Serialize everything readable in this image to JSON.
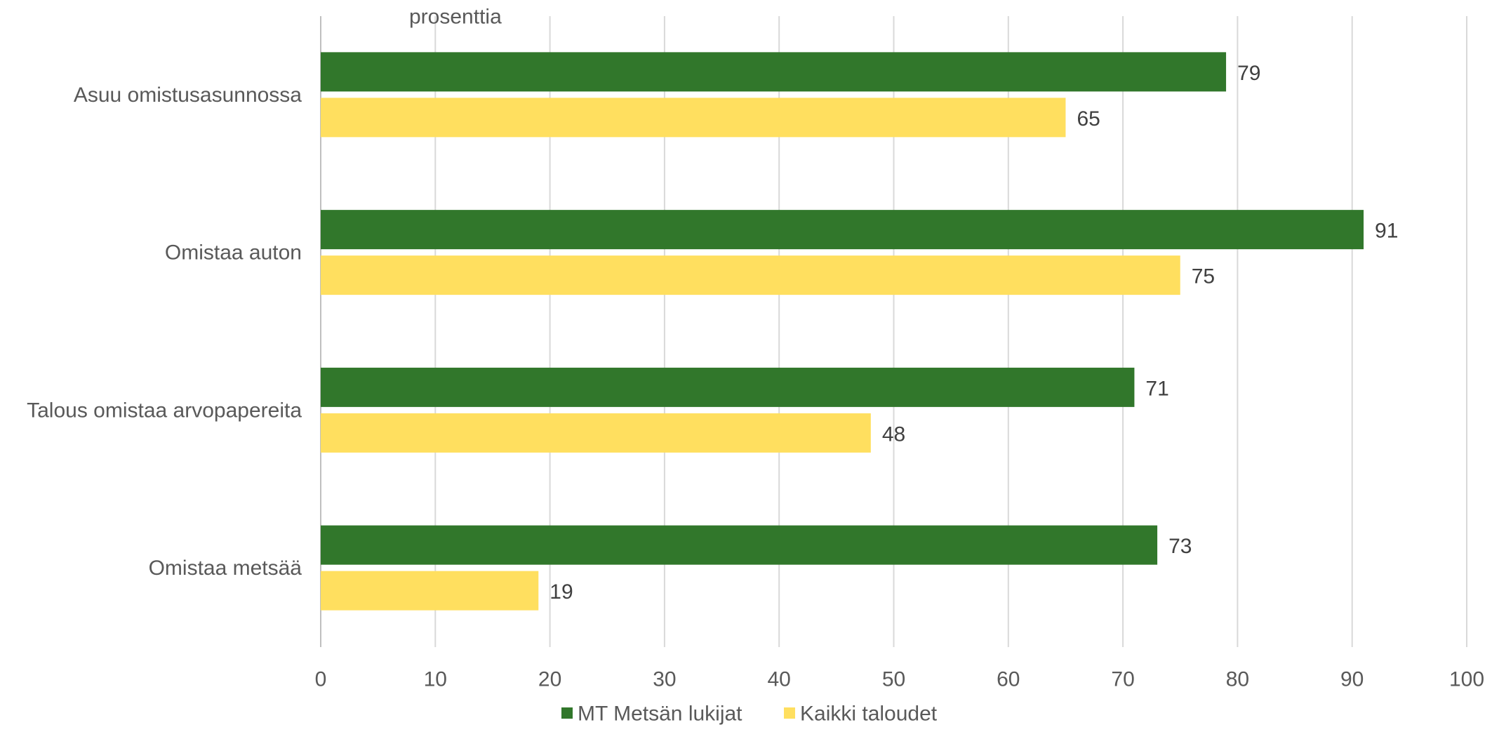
{
  "chart_data": {
    "type": "bar",
    "orientation": "horizontal",
    "unit_label": "prosenttia",
    "categories": [
      "Asuu omistusasunnossa",
      "Omistaa auton",
      "Talous omistaa arvopapereita",
      "Omistaa metsää"
    ],
    "series": [
      {
        "name": "MT Metsän lukijat",
        "values": [
          79,
          91,
          71,
          73
        ],
        "color": "#31772B"
      },
      {
        "name": "Kaikki taloudet",
        "values": [
          65,
          75,
          48,
          19
        ],
        "color": "#FFDF5F"
      }
    ],
    "xlim": [
      0,
      100
    ],
    "x_ticks": [
      "0",
      "10",
      "20",
      "30",
      "40",
      "50",
      "60",
      "70",
      "80",
      "90",
      "100"
    ],
    "grid": true,
    "grid_color": "#D9D9D9",
    "legend": "bottom",
    "data_labels": true
  }
}
